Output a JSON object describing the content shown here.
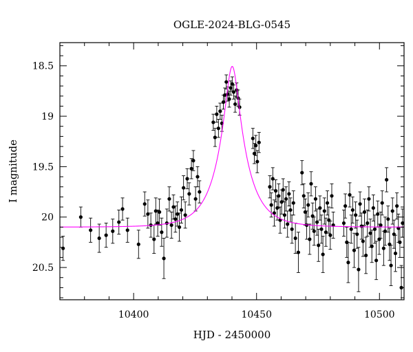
{
  "chart_data": {
    "type": "scatter",
    "title": "OGLE-2024-BLG-0545",
    "xlabel": "HJD - 2450000",
    "ylabel": "I magnitude",
    "xlim": [
      10370,
      10510
    ],
    "ylim": [
      20.82,
      18.27
    ],
    "y_inverted": true,
    "grid": false,
    "legend": "none",
    "x_ticks": [
      "10400",
      "10450",
      "10500"
    ],
    "x_tick_values": [
      10400,
      10450,
      10500
    ],
    "y_ticks": [
      "18.5",
      "19",
      "19.5",
      "20",
      "20.5"
    ],
    "y_tick_values": [
      18.5,
      19,
      19.5,
      20,
      20.5
    ],
    "model": {
      "name": "",
      "color": "#ff00ff",
      "t0": 10440.1,
      "tE": 10.9,
      "u0": 0.235,
      "baseline_mag": 20.1
    },
    "series": [
      {
        "name": "",
        "color": "#000000",
        "points": [
          [
            10371.3,
            20.31,
            0.12
          ],
          [
            10378.5,
            20.0,
            0.1
          ],
          [
            10382.5,
            20.13,
            0.12
          ],
          [
            10386.0,
            20.21,
            0.14
          ],
          [
            10388.8,
            20.18,
            0.12
          ],
          [
            10391.5,
            20.14,
            0.12
          ],
          [
            10394.0,
            20.05,
            0.12
          ],
          [
            10395.5,
            19.92,
            0.11
          ],
          [
            10397.5,
            20.13,
            0.12
          ],
          [
            10402.0,
            20.27,
            0.14
          ],
          [
            10404.5,
            19.87,
            0.12
          ],
          [
            10405.8,
            19.97,
            0.14
          ],
          [
            10407.0,
            20.08,
            0.12
          ],
          [
            10408.3,
            20.22,
            0.14
          ],
          [
            10409.0,
            19.94,
            0.13
          ],
          [
            10409.8,
            20.06,
            0.13
          ],
          [
            10410.5,
            19.95,
            0.13
          ],
          [
            10411.4,
            20.15,
            0.14
          ],
          [
            10412.3,
            20.41,
            0.2
          ],
          [
            10413.5,
            20.06,
            0.14
          ],
          [
            10414.5,
            19.82,
            0.12
          ],
          [
            10415.4,
            20.08,
            0.13
          ],
          [
            10416.2,
            19.9,
            0.12
          ],
          [
            10417.0,
            20.02,
            0.13
          ],
          [
            10417.8,
            19.97,
            0.12
          ],
          [
            10418.6,
            20.1,
            0.14
          ],
          [
            10419.4,
            19.93,
            0.13
          ],
          [
            10420.3,
            19.71,
            0.12
          ],
          [
            10421.0,
            19.98,
            0.13
          ],
          [
            10421.8,
            19.62,
            0.1
          ],
          [
            10422.6,
            19.77,
            0.11
          ],
          [
            10423.5,
            19.52,
            0.1
          ],
          [
            10424.3,
            19.44,
            0.1
          ],
          [
            10425.2,
            19.82,
            0.12
          ],
          [
            10426.0,
            19.6,
            0.1
          ],
          [
            10426.8,
            19.75,
            0.11
          ],
          [
            10432.4,
            19.06,
            0.08
          ],
          [
            10433.1,
            19.21,
            0.09
          ],
          [
            10433.8,
            18.98,
            0.08
          ],
          [
            10434.5,
            19.12,
            0.09
          ],
          [
            10435.2,
            18.95,
            0.08
          ],
          [
            10435.9,
            19.07,
            0.08
          ],
          [
            10436.5,
            18.86,
            0.07
          ],
          [
            10437.1,
            18.79,
            0.07
          ],
          [
            10437.7,
            18.66,
            0.07
          ],
          [
            10438.3,
            18.78,
            0.07
          ],
          [
            10438.9,
            18.83,
            0.08
          ],
          [
            10439.5,
            18.72,
            0.07
          ],
          [
            10440.1,
            18.68,
            0.07
          ],
          [
            10440.7,
            18.76,
            0.07
          ],
          [
            10441.3,
            18.88,
            0.08
          ],
          [
            10441.9,
            18.74,
            0.07
          ],
          [
            10442.5,
            18.82,
            0.08
          ],
          [
            10443.1,
            18.91,
            0.08
          ],
          [
            10448.5,
            19.22,
            0.1
          ],
          [
            10449.1,
            19.37,
            0.1
          ],
          [
            10449.7,
            19.29,
            0.1
          ],
          [
            10450.3,
            19.45,
            0.11
          ],
          [
            10451.0,
            19.26,
            0.1
          ],
          [
            10455.4,
            19.7,
            0.11
          ],
          [
            10456.0,
            19.88,
            0.12
          ],
          [
            10456.6,
            19.62,
            0.11
          ],
          [
            10457.2,
            19.96,
            0.13
          ],
          [
            10457.8,
            19.74,
            0.11
          ],
          [
            10458.4,
            19.91,
            0.12
          ],
          [
            10459.0,
            19.79,
            0.12
          ],
          [
            10459.6,
            20.03,
            0.13
          ],
          [
            10460.2,
            19.85,
            0.12
          ],
          [
            10460.8,
            19.73,
            0.11
          ],
          [
            10461.4,
            19.98,
            0.13
          ],
          [
            10462.0,
            19.82,
            0.12
          ],
          [
            10462.6,
            20.07,
            0.13
          ],
          [
            10463.2,
            19.77,
            0.12
          ],
          [
            10463.8,
            19.93,
            0.12
          ],
          [
            10464.4,
            20.12,
            0.14
          ],
          [
            10465.0,
            19.86,
            0.12
          ],
          [
            10465.8,
            20.21,
            0.15
          ],
          [
            10467.0,
            20.35,
            0.2
          ],
          [
            10468.5,
            19.56,
            0.12
          ],
          [
            10469.2,
            19.79,
            0.12
          ],
          [
            10469.8,
            19.95,
            0.13
          ],
          [
            10470.4,
            20.08,
            0.14
          ],
          [
            10471.0,
            19.88,
            0.12
          ],
          [
            10471.6,
            20.22,
            0.15
          ],
          [
            10472.2,
            19.67,
            0.12
          ],
          [
            10472.8,
            19.99,
            0.13
          ],
          [
            10473.4,
            20.14,
            0.14
          ],
          [
            10474.0,
            19.82,
            0.12
          ],
          [
            10474.6,
            20.05,
            0.13
          ],
          [
            10475.2,
            20.28,
            0.16
          ],
          [
            10475.8,
            19.91,
            0.12
          ],
          [
            10476.4,
            20.12,
            0.14
          ],
          [
            10477.0,
            20.37,
            0.18
          ],
          [
            10477.6,
            19.94,
            0.13
          ],
          [
            10478.2,
            20.15,
            0.14
          ],
          [
            10478.8,
            19.86,
            0.12
          ],
          [
            10479.4,
            20.03,
            0.13
          ],
          [
            10480.0,
            20.18,
            0.14
          ],
          [
            10480.6,
            19.79,
            0.12
          ],
          [
            10481.2,
            20.08,
            0.13
          ],
          [
            10485.5,
            20.06,
            0.13
          ],
          [
            10486.1,
            19.89,
            0.12
          ],
          [
            10486.7,
            20.25,
            0.15
          ],
          [
            10487.3,
            20.45,
            0.2
          ],
          [
            10487.9,
            19.78,
            0.12
          ],
          [
            10488.5,
            20.12,
            0.14
          ],
          [
            10489.1,
            19.93,
            0.13
          ],
          [
            10489.7,
            20.33,
            0.17
          ],
          [
            10490.3,
            19.98,
            0.13
          ],
          [
            10490.9,
            20.17,
            0.14
          ],
          [
            10491.5,
            20.52,
            0.22
          ],
          [
            10492.1,
            19.87,
            0.12
          ],
          [
            10492.7,
            20.09,
            0.13
          ],
          [
            10493.3,
            20.24,
            0.15
          ],
          [
            10493.9,
            19.95,
            0.13
          ],
          [
            10494.5,
            20.38,
            0.18
          ],
          [
            10495.1,
            20.06,
            0.13
          ],
          [
            10495.7,
            19.82,
            0.12
          ],
          [
            10496.3,
            20.16,
            0.14
          ],
          [
            10496.9,
            20.29,
            0.16
          ],
          [
            10497.5,
            19.91,
            0.13
          ],
          [
            10498.1,
            20.12,
            0.14
          ],
          [
            10498.7,
            20.43,
            0.19
          ],
          [
            10499.3,
            19.97,
            0.13
          ],
          [
            10499.9,
            20.22,
            0.15
          ],
          [
            10500.5,
            20.08,
            0.13
          ],
          [
            10501.1,
            19.86,
            0.12
          ],
          [
            10501.7,
            20.31,
            0.17
          ],
          [
            10502.3,
            20.14,
            0.14
          ],
          [
            10502.9,
            19.63,
            0.12
          ],
          [
            10503.5,
            20.02,
            0.13
          ],
          [
            10504.1,
            20.27,
            0.16
          ],
          [
            10504.7,
            20.48,
            0.2
          ],
          [
            10505.3,
            19.94,
            0.13
          ],
          [
            10505.9,
            20.17,
            0.14
          ],
          [
            10506.5,
            20.36,
            0.18
          ],
          [
            10507.1,
            19.89,
            0.13
          ],
          [
            10507.7,
            20.11,
            0.14
          ],
          [
            10508.3,
            20.25,
            0.15
          ],
          [
            10508.9,
            20.7,
            0.22
          ],
          [
            10509.4,
            20.06,
            0.14
          ]
        ]
      }
    ]
  }
}
